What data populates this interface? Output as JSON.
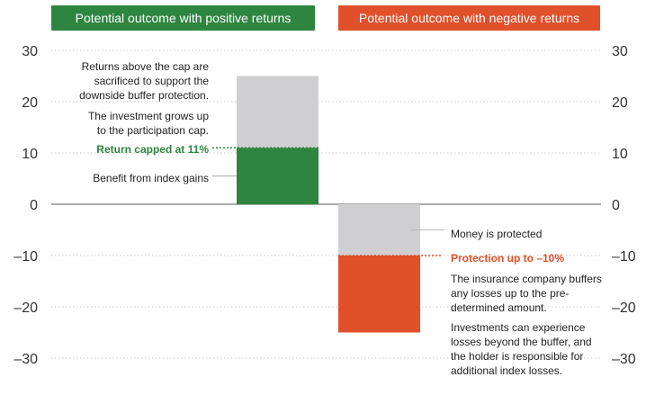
{
  "banners": {
    "positive": {
      "label": "Potential outcome with positive returns",
      "color": "#2e8540"
    },
    "negative": {
      "label": "Potential outcome with negative returns",
      "color": "#e0502a"
    }
  },
  "annotations": {
    "returns_above_cap": "Returns above the cap are sacrificed to support the downside buffer protection.",
    "grows_up_to_cap": "The investment grows up to the participation cap.",
    "return_capped": "Return capped at 11%",
    "benefit_index_gains": "Benefit from index gains",
    "money_protected": "Money is protected",
    "protection_up_to": "Protection up to –10%",
    "insurance_buffers": "The insurance company buffers any losses up to the pre-determined amount.",
    "losses_beyond_buffer": "Investments can experience losses beyond the buffer, and the holder is responsible for additional index losses."
  },
  "chart_data": {
    "type": "bar",
    "title": "",
    "xlabel": "",
    "ylabel": "",
    "ylim": [
      -30,
      30
    ],
    "yticks": [
      30,
      20,
      10,
      0,
      -10,
      -20,
      -30
    ],
    "ytick_labels": [
      "30",
      "20",
      "10",
      "0",
      "–10",
      "–20",
      "–30"
    ],
    "categories": [
      "Positive returns",
      "Negative returns"
    ],
    "stacked_segments": [
      {
        "category": "Positive returns",
        "name": "Return sacrificed above cap",
        "from": 11,
        "to": 25,
        "color": "#cfcfd1"
      },
      {
        "category": "Positive returns",
        "name": "Benefit from index gains",
        "from": 0,
        "to": 11,
        "color": "#2e8540"
      },
      {
        "category": "Negative returns",
        "name": "Money is protected",
        "from": 0,
        "to": -10,
        "color": "#cfcfd1"
      },
      {
        "category": "Negative returns",
        "name": "Losses beyond buffer",
        "from": -10,
        "to": -25,
        "color": "#e0502a"
      }
    ],
    "reference_lines": [
      {
        "name": "Return capped at 11%",
        "value": 11,
        "color": "#2e8540"
      },
      {
        "name": "Protection up to –10%",
        "value": -10,
        "color": "#e0502a"
      }
    ],
    "colors": {
      "gray": "#cfcfd1",
      "green": "#2e8540",
      "orange": "#e0502a",
      "grid": "#c9c9c9",
      "axis_text": "#333333"
    }
  }
}
